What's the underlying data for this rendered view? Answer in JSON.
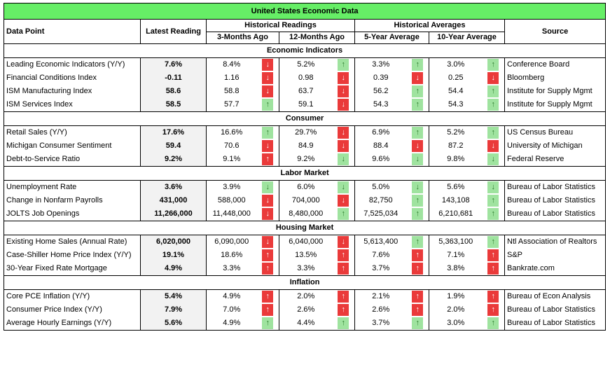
{
  "title": "United States Economic Data",
  "headers": {
    "data_point": "Data Point",
    "latest": "Latest Reading",
    "historical_readings": "Historical Readings",
    "three_months": "3-Months Ago",
    "twelve_months": "12-Months Ago",
    "historical_averages": "Historical Averages",
    "five_year": "5-Year Average",
    "ten_year": "10-Year Average",
    "source": "Source"
  },
  "arrow_colors": {
    "green": "#9fe39f",
    "red": "#ea3a3a",
    "title_bg": "#66ee66"
  },
  "sections": [
    {
      "title": "Economic Indicators",
      "rows": [
        {
          "name": "Leading Economic Indicators (Y/Y)",
          "latest": "7.6%",
          "m3": "8.4%",
          "m3_dir": "down",
          "m3_color": "red",
          "m12": "5.2%",
          "m12_dir": "up",
          "m12_color": "green",
          "y5": "3.3%",
          "y5_dir": "up",
          "y5_color": "green",
          "y10": "3.0%",
          "y10_dir": "up",
          "y10_color": "green",
          "source": "Conference Board"
        },
        {
          "name": "Financial Conditions Index",
          "latest": "-0.11",
          "m3": "1.16",
          "m3_dir": "down",
          "m3_color": "red",
          "m12": "0.98",
          "m12_dir": "down",
          "m12_color": "red",
          "y5": "0.39",
          "y5_dir": "down",
          "y5_color": "red",
          "y10": "0.25",
          "y10_dir": "down",
          "y10_color": "red",
          "source": "Bloomberg"
        },
        {
          "name": "ISM Manufacturing Index",
          "latest": "58.6",
          "m3": "58.8",
          "m3_dir": "down",
          "m3_color": "red",
          "m12": "63.7",
          "m12_dir": "down",
          "m12_color": "red",
          "y5": "56.2",
          "y5_dir": "up",
          "y5_color": "green",
          "y10": "54.4",
          "y10_dir": "up",
          "y10_color": "green",
          "source": "Institute for Supply Mgmt"
        },
        {
          "name": "ISM Services Index",
          "latest": "58.5",
          "m3": "57.7",
          "m3_dir": "up",
          "m3_color": "green",
          "m12": "59.1",
          "m12_dir": "down",
          "m12_color": "red",
          "y5": "54.3",
          "y5_dir": "up",
          "y5_color": "green",
          "y10": "54.3",
          "y10_dir": "up",
          "y10_color": "green",
          "source": "Institute for Supply Mgmt"
        }
      ]
    },
    {
      "title": "Consumer",
      "rows": [
        {
          "name": "Retail Sales (Y/Y)",
          "latest": "17.6%",
          "m3": "16.6%",
          "m3_dir": "up",
          "m3_color": "green",
          "m12": "29.7%",
          "m12_dir": "down",
          "m12_color": "red",
          "y5": "6.9%",
          "y5_dir": "up",
          "y5_color": "green",
          "y10": "5.2%",
          "y10_dir": "up",
          "y10_color": "green",
          "source": "US Census Bureau"
        },
        {
          "name": "Michigan Consumer Sentiment",
          "latest": "59.4",
          "m3": "70.6",
          "m3_dir": "down",
          "m3_color": "red",
          "m12": "84.9",
          "m12_dir": "down",
          "m12_color": "red",
          "y5": "88.4",
          "y5_dir": "down",
          "y5_color": "red",
          "y10": "87.2",
          "y10_dir": "down",
          "y10_color": "red",
          "source": "University of Michigan"
        },
        {
          "name": "Debt-to-Service Ratio",
          "latest": "9.2%",
          "m3": "9.1%",
          "m3_dir": "up",
          "m3_color": "red",
          "m12": "9.2%",
          "m12_dir": "down",
          "m12_color": "green",
          "y5": "9.6%",
          "y5_dir": "down",
          "y5_color": "green",
          "y10": "9.8%",
          "y10_dir": "down",
          "y10_color": "green",
          "source": "Federal Reserve"
        }
      ]
    },
    {
      "title": "Labor Market",
      "rows": [
        {
          "name": "Unemployment Rate",
          "latest": "3.6%",
          "m3": "3.9%",
          "m3_dir": "down",
          "m3_color": "green",
          "m12": "6.0%",
          "m12_dir": "down",
          "m12_color": "green",
          "y5": "5.0%",
          "y5_dir": "down",
          "y5_color": "green",
          "y10": "5.6%",
          "y10_dir": "down",
          "y10_color": "green",
          "source": "Bureau of Labor Statistics"
        },
        {
          "name": "Change in Nonfarm Payrolls",
          "latest": "431,000",
          "m3": "588,000",
          "m3_dir": "down",
          "m3_color": "red",
          "m12": "704,000",
          "m12_dir": "down",
          "m12_color": "red",
          "y5": "82,750",
          "y5_dir": "up",
          "y5_color": "green",
          "y10": "143,108",
          "y10_dir": "up",
          "y10_color": "green",
          "source": "Bureau of Labor Statistics"
        },
        {
          "name": "JOLTS Job Openings",
          "latest": "11,266,000",
          "m3": "11,448,000",
          "m3_dir": "down",
          "m3_color": "red",
          "m12": "8,480,000",
          "m12_dir": "up",
          "m12_color": "green",
          "y5": "7,525,034",
          "y5_dir": "up",
          "y5_color": "green",
          "y10": "6,210,681",
          "y10_dir": "up",
          "y10_color": "green",
          "source": "Bureau of Labor Statistics"
        }
      ]
    },
    {
      "title": "Housing Market",
      "rows": [
        {
          "name": "Existing Home Sales (Annual Rate)",
          "latest": "6,020,000",
          "m3": "6,090,000",
          "m3_dir": "down",
          "m3_color": "red",
          "m12": "6,040,000",
          "m12_dir": "down",
          "m12_color": "red",
          "y5": "5,613,400",
          "y5_dir": "up",
          "y5_color": "green",
          "y10": "5,363,100",
          "y10_dir": "up",
          "y10_color": "green",
          "source": "Ntl Association of Realtors"
        },
        {
          "name": "Case-Shiller Home Price Index (Y/Y)",
          "latest": "19.1%",
          "m3": "18.6%",
          "m3_dir": "up",
          "m3_color": "red",
          "m12": "13.5%",
          "m12_dir": "up",
          "m12_color": "red",
          "y5": "7.6%",
          "y5_dir": "up",
          "y5_color": "red",
          "y10": "7.1%",
          "y10_dir": "up",
          "y10_color": "red",
          "source": "S&P"
        },
        {
          "name": "30-Year Fixed Rate Mortgage",
          "latest": "4.9%",
          "m3": "3.3%",
          "m3_dir": "up",
          "m3_color": "red",
          "m12": "3.3%",
          "m12_dir": "up",
          "m12_color": "red",
          "y5": "3.7%",
          "y5_dir": "up",
          "y5_color": "red",
          "y10": "3.8%",
          "y10_dir": "up",
          "y10_color": "red",
          "source": "Bankrate.com"
        }
      ]
    },
    {
      "title": "Inflation",
      "rows": [
        {
          "name": "Core PCE Inflation (Y/Y)",
          "latest": "5.4%",
          "m3": "4.9%",
          "m3_dir": "up",
          "m3_color": "red",
          "m12": "2.0%",
          "m12_dir": "up",
          "m12_color": "red",
          "y5": "2.1%",
          "y5_dir": "up",
          "y5_color": "red",
          "y10": "1.9%",
          "y10_dir": "up",
          "y10_color": "red",
          "source": "Bureau of Econ Analysis"
        },
        {
          "name": "Consumer Price Index (Y/Y)",
          "latest": "7.9%",
          "m3": "7.0%",
          "m3_dir": "up",
          "m3_color": "red",
          "m12": "2.6%",
          "m12_dir": "up",
          "m12_color": "red",
          "y5": "2.6%",
          "y5_dir": "up",
          "y5_color": "red",
          "y10": "2.0%",
          "y10_dir": "up",
          "y10_color": "red",
          "source": "Bureau of Labor Statistics"
        },
        {
          "name": "Average Hourly Earnings (Y/Y)",
          "latest": "5.6%",
          "m3": "4.9%",
          "m3_dir": "up",
          "m3_color": "green",
          "m12": "4.4%",
          "m12_dir": "up",
          "m12_color": "green",
          "y5": "3.7%",
          "y5_dir": "up",
          "y5_color": "green",
          "y10": "3.0%",
          "y10_dir": "up",
          "y10_color": "green",
          "source": "Bureau of Labor Statistics"
        }
      ]
    }
  ]
}
